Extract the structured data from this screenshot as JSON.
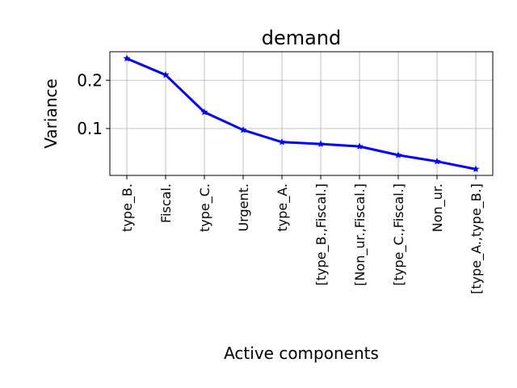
{
  "chart_data": {
    "type": "line",
    "title": "demand",
    "xlabel": "Active components",
    "ylabel": "Variance",
    "categories": [
      "type_B.",
      "Fiscal.",
      "type_C.",
      "Urgent.",
      "type_A.",
      "[type_B.,Fiscal.]",
      "[Non_ur.,Fiscal.]",
      "[type_C.,Fiscal.]",
      "Non_ur.",
      "[type_A.,type_B.]"
    ],
    "series": [
      {
        "values": [
          0.245,
          0.211,
          0.134,
          0.097,
          0.072,
          0.068,
          0.063,
          0.045,
          0.032,
          0.016
        ],
        "color": "#0000ff",
        "marker": "star"
      }
    ],
    "ylim": [
      0.003,
      0.259
    ],
    "yticks": [
      0.1,
      0.2
    ],
    "ytick_labels": [
      "0.1",
      "0.2"
    ],
    "grid": true
  }
}
